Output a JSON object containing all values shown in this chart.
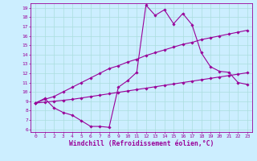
{
  "xlabel": "Windchill (Refroidissement éolien,°C)",
  "background_color": "#cceeff",
  "line_color": "#990099",
  "grid_color": "#aadddd",
  "xlim": [
    -0.5,
    23.5
  ],
  "ylim": [
    5.7,
    19.5
  ],
  "xticks": [
    0,
    1,
    2,
    3,
    4,
    5,
    6,
    7,
    8,
    9,
    10,
    11,
    12,
    13,
    14,
    15,
    16,
    17,
    18,
    19,
    20,
    21,
    22,
    23
  ],
  "yticks": [
    6,
    7,
    8,
    9,
    10,
    11,
    12,
    13,
    14,
    15,
    16,
    17,
    18,
    19
  ],
  "line1_x": [
    0,
    1,
    2,
    3,
    4,
    5,
    6,
    7,
    8,
    9,
    10,
    11,
    12,
    13,
    14,
    15,
    16,
    17,
    18,
    19,
    20,
    21,
    22,
    23
  ],
  "line1_y": [
    8.8,
    9.3,
    8.3,
    7.8,
    7.5,
    6.9,
    6.3,
    6.3,
    6.2,
    10.5,
    11.2,
    12.1,
    19.3,
    18.2,
    18.8,
    17.3,
    18.4,
    17.2,
    14.2,
    12.7,
    12.2,
    12.1,
    11.0,
    10.8
  ],
  "line2_x": [
    0,
    1,
    2,
    3,
    4,
    5,
    6,
    7,
    8,
    9,
    10,
    11,
    12,
    13,
    14,
    15,
    16,
    17,
    18,
    19,
    20,
    21,
    22,
    23
  ],
  "line2_y": [
    8.8,
    9.2,
    9.5,
    10.0,
    10.5,
    11.0,
    11.5,
    12.0,
    12.5,
    12.8,
    13.2,
    13.5,
    13.9,
    14.2,
    14.5,
    14.8,
    15.1,
    15.3,
    15.6,
    15.8,
    16.0,
    16.2,
    16.4,
    16.6
  ],
  "line3_x": [
    0,
    1,
    2,
    3,
    4,
    5,
    6,
    7,
    8,
    9,
    10,
    11,
    12,
    13,
    14,
    15,
    16,
    17,
    18,
    19,
    20,
    21,
    22,
    23
  ],
  "line3_y": [
    8.8,
    8.9,
    9.0,
    9.1,
    9.2,
    9.35,
    9.5,
    9.65,
    9.8,
    9.95,
    10.1,
    10.25,
    10.4,
    10.55,
    10.7,
    10.85,
    11.0,
    11.15,
    11.3,
    11.45,
    11.6,
    11.75,
    11.9,
    12.05
  ],
  "marker": "D",
  "marker_size": 1.8,
  "line_width": 0.8,
  "tick_fontsize": 4.5,
  "label_fontsize": 5.8
}
